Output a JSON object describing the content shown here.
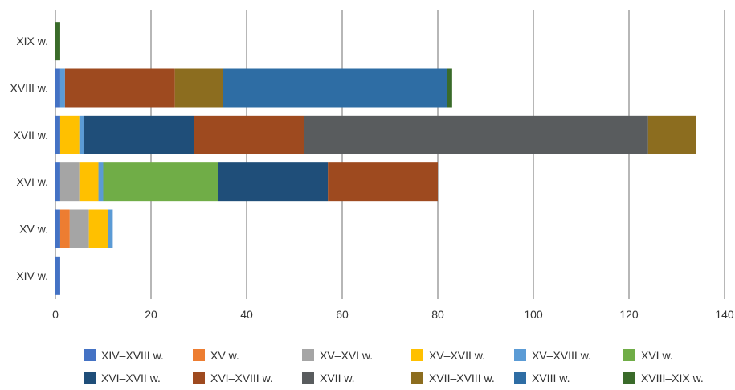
{
  "chart_data": {
    "type": "bar",
    "orientation": "horizontal",
    "stacked": true,
    "categories": [
      "XIX w.",
      "XVIII w.",
      "XVII w.",
      "XVI w.",
      "XV w.",
      "XIV w."
    ],
    "xlim": [
      0,
      140
    ],
    "xticks": [
      0,
      20,
      40,
      60,
      80,
      100,
      120,
      140
    ],
    "grid": "vertical",
    "legend_position": "bottom",
    "series": [
      {
        "name": "XIV–XVIII w.",
        "color": "#4472C4",
        "values": [
          0,
          1,
          1,
          1,
          1,
          1
        ]
      },
      {
        "name": "XV w.",
        "color": "#ED7D31",
        "values": [
          0,
          0,
          0,
          0,
          2,
          0
        ]
      },
      {
        "name": "XV–XVI w.",
        "color": "#A5A5A5",
        "values": [
          0,
          0,
          0,
          4,
          4,
          0
        ]
      },
      {
        "name": "XV–XVII w.",
        "color": "#FFC000",
        "values": [
          0,
          0,
          4,
          4,
          4,
          0
        ]
      },
      {
        "name": "XV–XVIII w.",
        "color": "#5B9BD5",
        "values": [
          0,
          1,
          1,
          1,
          1,
          0
        ]
      },
      {
        "name": "XVI w.",
        "color": "#70AD47",
        "values": [
          0,
          0,
          0,
          24,
          0,
          0
        ]
      },
      {
        "name": "XVI–XVII w.",
        "color": "#1F4E79",
        "values": [
          0,
          0,
          23,
          23,
          0,
          0
        ]
      },
      {
        "name": "XVI–XVIII w.",
        "color": "#9E4A1F",
        "values": [
          0,
          23,
          23,
          23,
          0,
          0
        ]
      },
      {
        "name": "XVII w.",
        "color": "#595C5E",
        "values": [
          0,
          0,
          72,
          0,
          0,
          0
        ]
      },
      {
        "name": "XVII–XVIII w.",
        "color": "#8C6D1F",
        "values": [
          0,
          10,
          10,
          0,
          0,
          0
        ]
      },
      {
        "name": "XVIII w.",
        "color": "#2E6DA4",
        "values": [
          0,
          47,
          0,
          0,
          0,
          0
        ]
      },
      {
        "name": "XVIII–XIX w.",
        "color": "#3A6B2A",
        "values": [
          1,
          1,
          0,
          0,
          0,
          0
        ]
      }
    ]
  }
}
